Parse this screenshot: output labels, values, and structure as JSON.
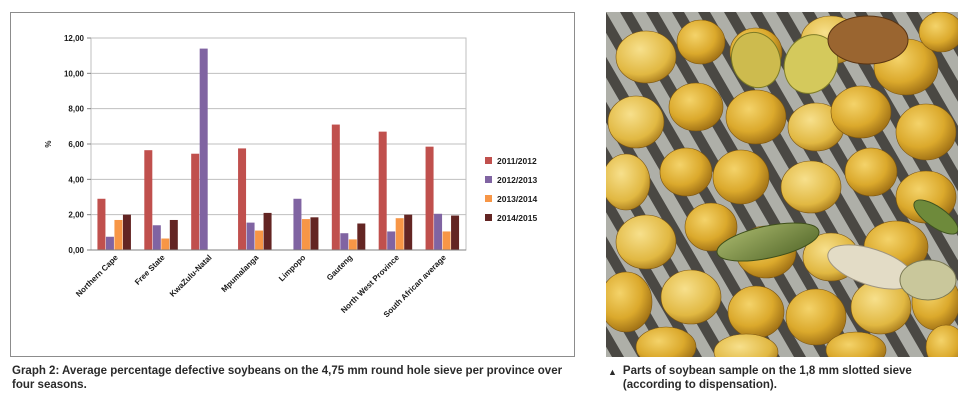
{
  "chart_data": {
    "type": "bar",
    "ylabel": "%",
    "ylim": [
      0,
      12
    ],
    "yticks": [
      "0,00",
      "2,00",
      "4,00",
      "6,00",
      "8,00",
      "10,00",
      "12,00"
    ],
    "grid": true,
    "legend_position": "right",
    "categories": [
      "Northern Cape",
      "Free State",
      "KwaZulu-Natal",
      "Mpumalanga",
      "Limpopo",
      "Gauteng",
      "North West Province",
      "South African average"
    ],
    "series": [
      {
        "name": "2011/2012",
        "color": "#c0504d",
        "values": [
          2.9,
          5.65,
          5.45,
          5.75,
          0,
          7.1,
          6.7,
          5.85
        ]
      },
      {
        "name": "2012/2013",
        "color": "#8064a2",
        "values": [
          0.75,
          1.4,
          11.4,
          1.55,
          2.9,
          0.95,
          1.05,
          2.05
        ]
      },
      {
        "name": "2013/2014",
        "color": "#f79646",
        "values": [
          1.7,
          0.65,
          0,
          1.1,
          1.75,
          0.6,
          1.8,
          1.05
        ]
      },
      {
        "name": "2014/2015",
        "color": "#632523",
        "values": [
          2.0,
          1.7,
          0,
          2.1,
          1.85,
          1.5,
          2.0,
          1.95
        ]
      }
    ]
  },
  "captions": {
    "graph": "Graph 2: Average percentage defective soybeans on the 4,75 mm round hole sieve per province over four seasons.",
    "photo_marker": "▲",
    "photo": "Parts of soybean sample on the 1,8 mm slotted sieve (according to dispensation)."
  },
  "photo": {
    "subject": "soybeans on a slotted metal sieve",
    "bean_color": "#d9a92a",
    "sieve_color": "#b7b8b3"
  }
}
